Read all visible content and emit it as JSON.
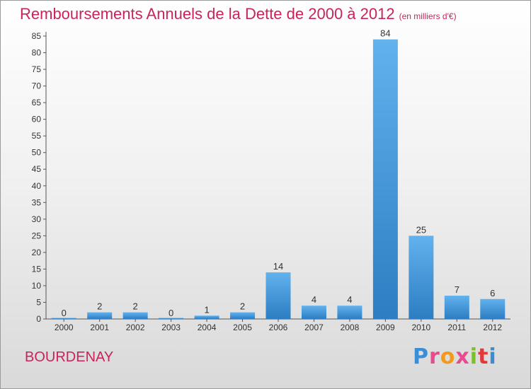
{
  "header": {
    "title": "Remboursements Annuels de la Dette de 2000 à 2012",
    "unit": "(en milliers d'€)"
  },
  "footer": {
    "commune": "BOURDENAY",
    "logo_text": "Proxiti"
  },
  "colors": {
    "title": "#c8245a",
    "bar_light": "#62b2ee",
    "bar_dark": "#2c7dc2"
  },
  "chart_data": {
    "type": "bar",
    "title": "Remboursements Annuels de la Dette de 2000 à 2012",
    "xlabel": "",
    "ylabel": "",
    "categories": [
      "2000",
      "2001",
      "2002",
      "2003",
      "2004",
      "2005",
      "2006",
      "2007",
      "2008",
      "2009",
      "2010",
      "2011",
      "2012"
    ],
    "values": [
      0,
      2,
      2,
      0,
      1,
      2,
      14,
      4,
      4,
      84,
      25,
      7,
      6
    ],
    "ylim": [
      0,
      85
    ],
    "yticks": [
      0,
      5,
      10,
      15,
      20,
      25,
      30,
      35,
      40,
      45,
      50,
      55,
      60,
      65,
      70,
      75,
      80,
      85
    ],
    "grid": false,
    "legend": "none"
  }
}
